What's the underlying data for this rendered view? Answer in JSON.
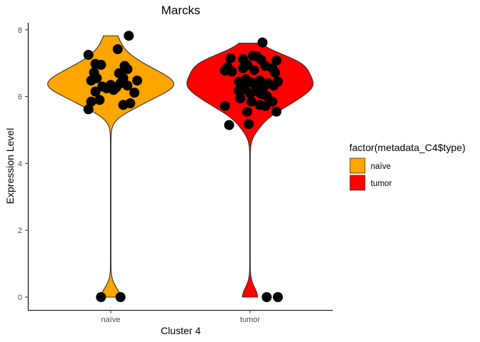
{
  "chart_data": {
    "type": "violin",
    "title": "Marcks",
    "xlabel": "Cluster 4",
    "ylabel": "Expression Level",
    "categories": [
      "naïve",
      "tumor"
    ],
    "ylim": [
      -0.4,
      8.2
    ],
    "yticks": [
      0,
      2,
      4,
      6,
      8
    ],
    "grid": false,
    "legend": {
      "title": "factor(metadata_C4$type)",
      "position": "right",
      "entries": [
        {
          "label": "naïve",
          "color": "#FFA500"
        },
        {
          "label": "tumor",
          "color": "#FF0000"
        }
      ]
    },
    "series": [
      {
        "category": "naïve",
        "color": "#FFA500",
        "min": 0,
        "max": 7.82,
        "points": [
          {
            "x": 0.84,
            "y": 7.25
          },
          {
            "x": 1.13,
            "y": 7.82
          },
          {
            "x": 1.05,
            "y": 7.42
          },
          {
            "x": 0.89,
            "y": 6.98
          },
          {
            "x": 0.93,
            "y": 6.95
          },
          {
            "x": 0.88,
            "y": 6.72
          },
          {
            "x": 0.9,
            "y": 6.55
          },
          {
            "x": 0.86,
            "y": 6.48
          },
          {
            "x": 1.1,
            "y": 6.92
          },
          {
            "x": 1.12,
            "y": 6.82
          },
          {
            "x": 1.06,
            "y": 6.7
          },
          {
            "x": 1.09,
            "y": 6.55
          },
          {
            "x": 1.19,
            "y": 6.48
          },
          {
            "x": 0.94,
            "y": 6.3
          },
          {
            "x": 0.97,
            "y": 6.25
          },
          {
            "x": 1.0,
            "y": 6.35
          },
          {
            "x": 1.02,
            "y": 6.2
          },
          {
            "x": 1.04,
            "y": 6.28
          },
          {
            "x": 1.07,
            "y": 6.4
          },
          {
            "x": 1.12,
            "y": 6.33
          },
          {
            "x": 0.89,
            "y": 6.15
          },
          {
            "x": 1.17,
            "y": 6.12
          },
          {
            "x": 0.92,
            "y": 5.9
          },
          {
            "x": 0.86,
            "y": 5.85
          },
          {
            "x": 1.09,
            "y": 5.75
          },
          {
            "x": 1.14,
            "y": 5.8
          },
          {
            "x": 0.84,
            "y": 5.62
          },
          {
            "x": 0.93,
            "y": 0.0
          },
          {
            "x": 1.07,
            "y": 0.0
          }
        ]
      },
      {
        "category": "tumor",
        "color": "#FF0000",
        "min": 0,
        "max": 7.6,
        "points": [
          {
            "x": 2.09,
            "y": 7.62
          },
          {
            "x": 1.86,
            "y": 7.15
          },
          {
            "x": 1.95,
            "y": 7.12
          },
          {
            "x": 2.02,
            "y": 7.22
          },
          {
            "x": 2.05,
            "y": 7.2
          },
          {
            "x": 2.08,
            "y": 7.1
          },
          {
            "x": 2.19,
            "y": 7.08
          },
          {
            "x": 1.84,
            "y": 6.88
          },
          {
            "x": 1.82,
            "y": 6.78
          },
          {
            "x": 1.87,
            "y": 6.75
          },
          {
            "x": 1.95,
            "y": 6.85
          },
          {
            "x": 1.98,
            "y": 6.95
          },
          {
            "x": 2.03,
            "y": 6.8
          },
          {
            "x": 2.11,
            "y": 6.92
          },
          {
            "x": 2.16,
            "y": 6.85
          },
          {
            "x": 2.18,
            "y": 6.72
          },
          {
            "x": 1.92,
            "y": 6.45
          },
          {
            "x": 1.94,
            "y": 6.38
          },
          {
            "x": 1.97,
            "y": 6.52
          },
          {
            "x": 2.01,
            "y": 6.42
          },
          {
            "x": 2.04,
            "y": 6.35
          },
          {
            "x": 2.07,
            "y": 6.48
          },
          {
            "x": 2.1,
            "y": 6.3
          },
          {
            "x": 2.13,
            "y": 6.4
          },
          {
            "x": 2.17,
            "y": 6.33
          },
          {
            "x": 2.2,
            "y": 6.45
          },
          {
            "x": 1.92,
            "y": 6.18
          },
          {
            "x": 1.96,
            "y": 6.22
          },
          {
            "x": 2.0,
            "y": 6.1
          },
          {
            "x": 2.05,
            "y": 6.15
          },
          {
            "x": 2.08,
            "y": 6.08
          },
          {
            "x": 2.12,
            "y": 6.02
          },
          {
            "x": 1.93,
            "y": 5.95
          },
          {
            "x": 2.01,
            "y": 5.85
          },
          {
            "x": 2.07,
            "y": 5.75
          },
          {
            "x": 2.11,
            "y": 5.72
          },
          {
            "x": 2.16,
            "y": 5.85
          },
          {
            "x": 1.98,
            "y": 5.55
          },
          {
            "x": 2.19,
            "y": 5.55
          },
          {
            "x": 1.82,
            "y": 5.72
          },
          {
            "x": 1.85,
            "y": 5.15
          },
          {
            "x": 1.99,
            "y": 5.18
          },
          {
            "x": 2.12,
            "y": 0.0
          },
          {
            "x": 2.2,
            "y": 0.0
          }
        ]
      }
    ]
  }
}
